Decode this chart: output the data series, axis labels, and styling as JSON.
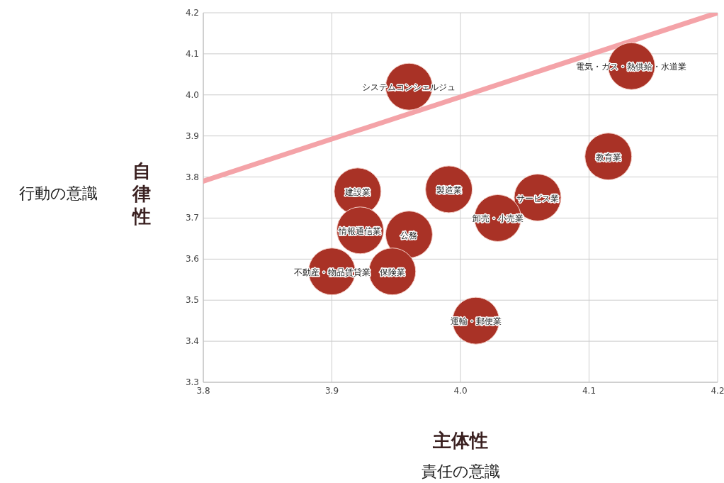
{
  "chart_data": {
    "type": "bubble",
    "xlabel": "主体性",
    "ylabel": "自律性",
    "annotations": [
      "責任の意識",
      "行動の意識",
      {
        "text": "システムコンシェルジュ",
        "x": 3.96,
        "y": 4.02
      },
      {
        "text": "電気・ガス・熱供給・水道業",
        "x": 4.133,
        "y": 4.07
      },
      {
        "text": "教育業",
        "x": 4.115,
        "y": 3.85
      },
      {
        "text": "製造業",
        "x": 3.991,
        "y": 3.77
      },
      {
        "text": "サービス業",
        "x": 4.06,
        "y": 3.75
      },
      {
        "text": "卸売・小売業",
        "x": 4.029,
        "y": 3.7
      },
      {
        "text": "建設業",
        "x": 3.92,
        "y": 3.765
      },
      {
        "text": "情報通信業",
        "x": 3.922,
        "y": 3.67
      },
      {
        "text": "公務",
        "x": 3.96,
        "y": 3.66
      },
      {
        "text": "不動産・物品賃貸業",
        "x": 3.9,
        "y": 3.57
      },
      {
        "text": "保険業",
        "x": 3.947,
        "y": 3.57
      },
      {
        "text": "運輸・郵便業",
        "x": 4.012,
        "y": 3.45
      }
    ],
    "series": [
      {
        "type": "line",
        "color": "#f4a3a8",
        "x": [
          3.8,
          4.2
        ],
        "values": [
          3.79,
          4.2
        ]
      },
      {
        "color": "#a93226",
        "x": [
          3.96,
          4.133,
          4.115,
          3.991,
          4.06,
          4.029,
          3.92,
          3.922,
          3.96,
          3.9,
          3.947,
          4.012
        ],
        "values": [
          4.02,
          4.07,
          3.85,
          3.77,
          3.75,
          3.7,
          3.765,
          3.67,
          3.66,
          3.57,
          3.57,
          3.45
        ],
        "sizes": [
          1,
          1,
          1,
          1,
          1,
          1,
          1,
          1,
          1,
          1,
          1,
          1
        ]
      }
    ],
    "xlim": [
      3.8,
      4.2
    ],
    "ylim": [
      3.3,
      4.2
    ],
    "xticks": [
      3.8,
      3.9,
      {
        "value": 4.0,
        "label": "4.0"
      },
      4.1,
      4.2
    ],
    "yticks": [
      3.3,
      3.4,
      3.5,
      3.6,
      3.7,
      3.8,
      3.9,
      {
        "value": 4.0,
        "label": "4.0"
      },
      4.1,
      4.2
    ],
    "grid": true
  }
}
